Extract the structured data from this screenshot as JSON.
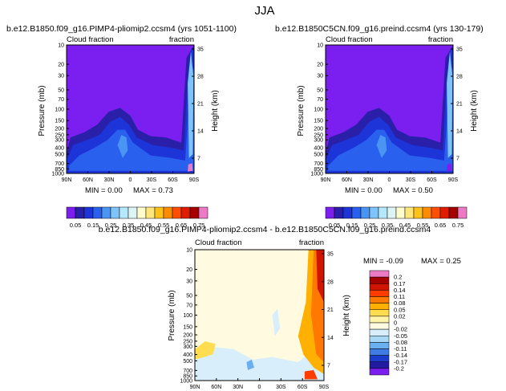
{
  "figure": {
    "title": "JJA"
  },
  "panels": [
    {
      "title": "b.e12.B1850.f09_g16.PIMP4-pliomip2.ccsm4 (yrs 1051-1100)",
      "left_label": "Cloud fraction",
      "right_label": "fraction",
      "ylabel_left": "Pressure (mb)",
      "ylabel_right": "Height (km)",
      "min_text": "MIN = 0.00",
      "max_text": "MAX = 0.73"
    },
    {
      "title": "b.e12.B1850C5CN.f09_g16.preind.ccsm4 (yrs 130-179)",
      "left_label": "Cloud fraction",
      "right_label": "fraction",
      "ylabel_left": "Pressure (mb)",
      "ylabel_right": "Height (km)",
      "min_text": "MIN = 0.00",
      "max_text": "MAX = 0.50"
    },
    {
      "title": "b.e12.B1850.f09_g16.PIMP4-pliomip2.ccsm4 - b.e12.B1850C5CN.f09_g16.preind.ccsm4",
      "left_label": "Cloud fraction",
      "right_label": "fraction",
      "ylabel_left": "Pressure (mb)",
      "ylabel_right": "Height (km)",
      "min_text": "MIN = -0.09",
      "max_text": "MAX = 0.25"
    }
  ],
  "chart_data": [
    {
      "type": "heatmap",
      "x_ticks": [
        "90N",
        "60N",
        "30N",
        "0",
        "30S",
        "60S",
        "90S"
      ],
      "y_ticks": [
        "10",
        "20",
        "30",
        "50",
        "70",
        "100",
        "150",
        "200",
        "250",
        "300",
        "400",
        "500",
        "700",
        "850",
        "1000"
      ],
      "y_right_ticks": [
        "35",
        "28",
        "21",
        "14",
        "7"
      ],
      "colorbar_labels": [
        "0.05",
        "0.15",
        "0.25",
        "0.35",
        "0.45",
        "0.55",
        "0.65",
        "0.75"
      ],
      "colorbar_colors": [
        "#7a1ff0",
        "#2a1fa8",
        "#1c34d8",
        "#2a60ee",
        "#4a94f4",
        "#7ec4f8",
        "#b4e8fa",
        "#dcf4f4",
        "#fffccc",
        "#ffe67a",
        "#ffc21c",
        "#ff8c00",
        "#ff4e00",
        "#e01c00",
        "#a40000",
        "#ec7ac4"
      ]
    },
    {
      "type": "heatmap",
      "x_ticks": [
        "90N",
        "60N",
        "30N",
        "0",
        "30S",
        "60S",
        "90S"
      ],
      "y_ticks": [
        "10",
        "20",
        "30",
        "50",
        "70",
        "100",
        "150",
        "200",
        "250",
        "300",
        "400",
        "500",
        "700",
        "850",
        "1000"
      ],
      "y_right_ticks": [
        "35",
        "28",
        "21",
        "14",
        "7"
      ],
      "colorbar_labels": [
        "0.05",
        "0.15",
        "0.25",
        "0.35",
        "0.45",
        "0.55",
        "0.65",
        "0.75"
      ],
      "colorbar_colors": [
        "#7a1ff0",
        "#2a1fa8",
        "#1c34d8",
        "#2a60ee",
        "#4a94f4",
        "#7ec4f8",
        "#b4e8fa",
        "#dcf4f4",
        "#fffccc",
        "#ffe67a",
        "#ffc21c",
        "#ff8c00",
        "#ff4e00",
        "#e01c00",
        "#a40000",
        "#ec7ac4"
      ]
    },
    {
      "type": "heatmap",
      "x_ticks": [
        "90N",
        "60N",
        "30N",
        "0",
        "30S",
        "60S",
        "90S"
      ],
      "y_ticks": [
        "10",
        "20",
        "30",
        "50",
        "70",
        "100",
        "150",
        "200",
        "250",
        "300",
        "400",
        "500",
        "700",
        "850",
        "1000"
      ],
      "y_right_ticks": [
        "35",
        "28",
        "21",
        "14",
        "7"
      ],
      "colorbar_labels": [
        "0.2",
        "0.17",
        "0.14",
        "0.11",
        "0.08",
        "0.05",
        "0.02",
        "0",
        "-0.02",
        "-0.05",
        "-0.08",
        "-0.11",
        "-0.14",
        "-0.17",
        "-0.2"
      ],
      "colorbar_colors": [
        "#ec7ac4",
        "#a40000",
        "#d01400",
        "#ff3c00",
        "#ff7800",
        "#ffb000",
        "#ffdc50",
        "#fff4a8",
        "#fffae0",
        "#d8eefa",
        "#a8d8f6",
        "#6ab0f0",
        "#3e7ce4",
        "#1c3ccc",
        "#221aa0",
        "#7a1ff0"
      ]
    }
  ]
}
